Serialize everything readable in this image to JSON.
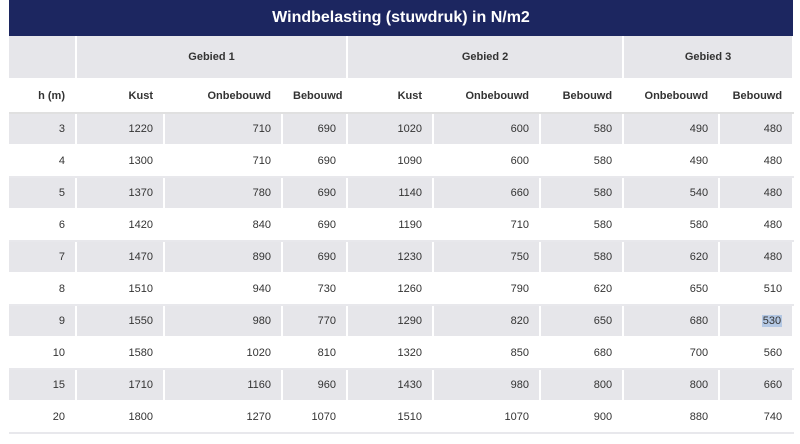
{
  "title": "Windbelasting (stuwdruk) in N/m2",
  "groups": [
    "",
    "Gebied 1",
    "Gebied 2",
    "Gebied 3"
  ],
  "columns": [
    "h (m)",
    "Kust",
    "Onbebouwd",
    "Bebouwd",
    "Kust",
    "Onbebouwd",
    "Bebouwd",
    "Onbebouwd",
    "Bebouwd"
  ],
  "rows": [
    [
      "3",
      "1220",
      "710",
      "690",
      "1020",
      "600",
      "580",
      "490",
      "480"
    ],
    [
      "4",
      "1300",
      "710",
      "690",
      "1090",
      "600",
      "580",
      "490",
      "480"
    ],
    [
      "5",
      "1370",
      "780",
      "690",
      "1140",
      "660",
      "580",
      "540",
      "480"
    ],
    [
      "6",
      "1420",
      "840",
      "690",
      "1190",
      "710",
      "580",
      "580",
      "480"
    ],
    [
      "7",
      "1470",
      "890",
      "690",
      "1230",
      "750",
      "580",
      "620",
      "480"
    ],
    [
      "8",
      "1510",
      "940",
      "730",
      "1260",
      "790",
      "620",
      "650",
      "510"
    ],
    [
      "9",
      "1550",
      "980",
      "770",
      "1290",
      "820",
      "650",
      "680",
      "530"
    ],
    [
      "10",
      "1580",
      "1020",
      "810",
      "1320",
      "850",
      "680",
      "700",
      "560"
    ],
    [
      "15",
      "1710",
      "1160",
      "960",
      "1430",
      "980",
      "800",
      "800",
      "660"
    ],
    [
      "20",
      "1800",
      "1270",
      "1070",
      "1510",
      "1070",
      "900",
      "880",
      "740"
    ]
  ],
  "selected_cell": {
    "row": 6,
    "col": 8
  },
  "colors": {
    "header_bg": "#1c2660",
    "stripe": "#e6e6ea",
    "selection": "#b4c8e4"
  }
}
